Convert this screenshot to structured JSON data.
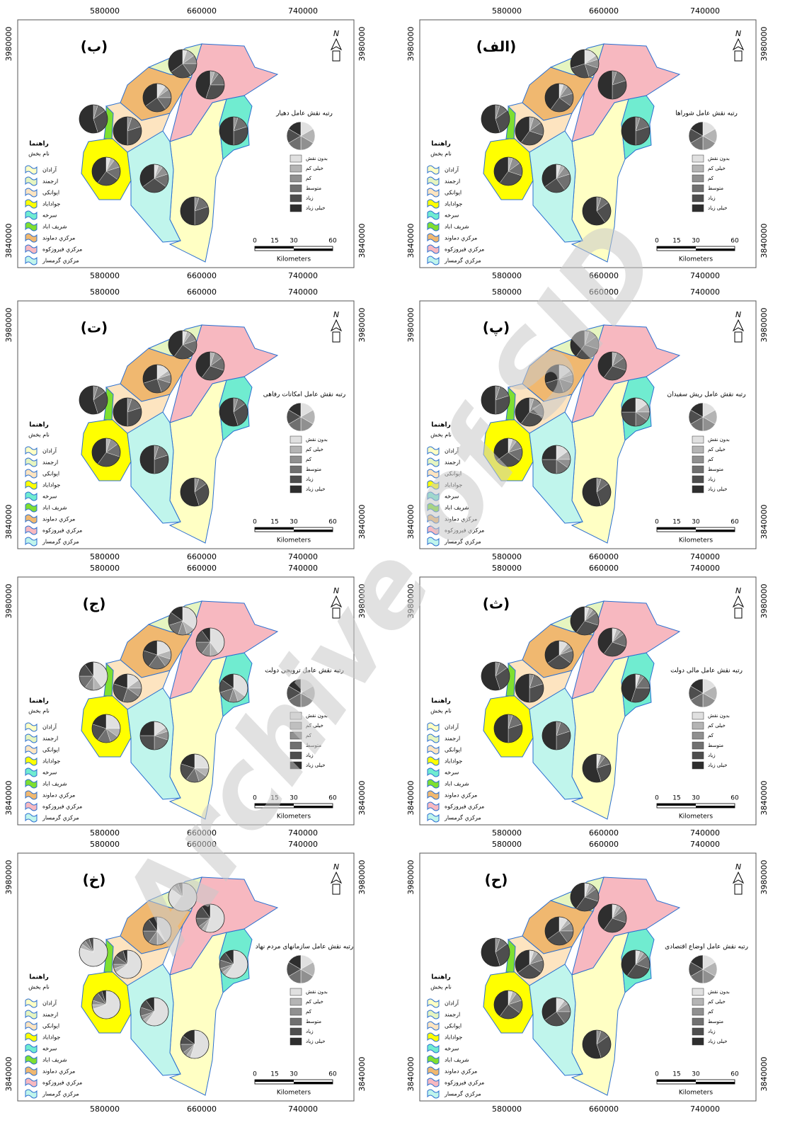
{
  "watermark": "Archive of SID",
  "x_ticks": [
    "580000",
    "660000",
    "740000"
  ],
  "y_ticks": [
    "3980000",
    "3840000"
  ],
  "north": "N",
  "legend": {
    "title": "راهنما",
    "subtitle": "نام بخش",
    "districts": [
      "آرادان",
      "ارجمند",
      "ايوانکی",
      "جواداباد",
      "سرخه",
      "شريف اباد",
      "مرکزي دماوند",
      "مرکزي فيروزکوه",
      "مرکزي گرمسار"
    ]
  },
  "pie_legend": [
    "بدون نقش",
    "خيلی کم",
    "کم",
    "متوسط",
    "زياد",
    "خيلی زياد"
  ],
  "scale": {
    "ticks": [
      "0",
      "15",
      "30",
      "60"
    ],
    "unit": "Kilometers"
  },
  "maps": [
    {
      "label": "(الف)",
      "title": "رتبه نقش عامل شوراها",
      "pies": [
        [
          0,
          0,
          5,
          10,
          25,
          60
        ],
        [
          15,
          5,
          10,
          15,
          25,
          30
        ],
        [
          0,
          5,
          10,
          15,
          30,
          40
        ],
        [
          0,
          5,
          10,
          15,
          30,
          40
        ],
        [
          0,
          0,
          5,
          15,
          30,
          50
        ],
        [
          0,
          0,
          5,
          10,
          30,
          55
        ],
        [
          5,
          5,
          10,
          15,
          25,
          40
        ],
        [
          0,
          0,
          5,
          15,
          30,
          50
        ],
        [
          5,
          5,
          10,
          20,
          25,
          35
        ]
      ]
    },
    {
      "label": "(ب)",
      "title": "رتبه نقش عامل دهيار",
      "pies": [
        [
          0,
          0,
          5,
          15,
          30,
          50
        ],
        [
          5,
          10,
          10,
          15,
          25,
          35
        ],
        [
          0,
          0,
          5,
          15,
          30,
          50
        ],
        [
          5,
          5,
          10,
          15,
          25,
          40
        ],
        [
          0,
          0,
          5,
          15,
          30,
          50
        ],
        [
          0,
          0,
          5,
          10,
          30,
          55
        ],
        [
          10,
          5,
          10,
          15,
          25,
          35
        ],
        [
          0,
          5,
          5,
          15,
          30,
          45
        ],
        [
          5,
          5,
          10,
          15,
          30,
          35
        ]
      ]
    },
    {
      "label": "(پ)",
      "title": "رتبه نقش عامل ريش سفيدان",
      "pies": [
        [
          0,
          0,
          5,
          10,
          30,
          55
        ],
        [
          0,
          5,
          10,
          15,
          30,
          40
        ],
        [
          0,
          5,
          10,
          15,
          30,
          40
        ],
        [
          5,
          5,
          10,
          15,
          30,
          35
        ],
        [
          15,
          10,
          10,
          15,
          25,
          25
        ],
        [
          0,
          0,
          5,
          15,
          30,
          50
        ],
        [
          15,
          5,
          10,
          15,
          25,
          30
        ],
        [
          0,
          5,
          10,
          15,
          30,
          40
        ],
        [
          15,
          10,
          10,
          15,
          25,
          25
        ]
      ]
    },
    {
      "label": "(ت)",
      "title": "رتبه نقش عامل امکانات رفاهی",
      "pies": [
        [
          0,
          0,
          5,
          10,
          30,
          55
        ],
        [
          5,
          5,
          10,
          15,
          25,
          40
        ],
        [
          0,
          0,
          5,
          15,
          30,
          50
        ],
        [
          0,
          5,
          10,
          15,
          30,
          40
        ],
        [
          0,
          0,
          5,
          10,
          30,
          55
        ],
        [
          0,
          0,
          5,
          10,
          30,
          55
        ],
        [
          15,
          5,
          10,
          15,
          25,
          30
        ],
        [
          0,
          5,
          10,
          15,
          30,
          40
        ],
        [
          0,
          0,
          5,
          15,
          30,
          50
        ]
      ]
    },
    {
      "label": "(ث)",
      "title": "رتبه نقش عامل مالی دولت",
      "pies": [
        [
          5,
          0,
          5,
          10,
          25,
          55
        ],
        [
          5,
          5,
          5,
          15,
          30,
          40
        ],
        [
          0,
          0,
          5,
          15,
          30,
          50
        ],
        [
          0,
          0,
          5,
          15,
          30,
          50
        ],
        [
          5,
          0,
          5,
          15,
          30,
          45
        ],
        [
          0,
          0,
          5,
          10,
          30,
          55
        ],
        [
          10,
          5,
          5,
          15,
          30,
          35
        ],
        [
          5,
          5,
          5,
          15,
          30,
          40
        ],
        [
          0,
          0,
          5,
          15,
          30,
          50
        ]
      ]
    },
    {
      "label": "(ج)",
      "title": "رتبه نقش عامل ترويجی دولت",
      "pies": [
        [
          25,
          10,
          10,
          15,
          20,
          20
        ],
        [
          35,
          10,
          10,
          15,
          15,
          15
        ],
        [
          15,
          10,
          10,
          20,
          25,
          20
        ],
        [
          25,
          10,
          10,
          15,
          20,
          20
        ],
        [
          35,
          10,
          10,
          15,
          15,
          15
        ],
        [
          40,
          10,
          10,
          15,
          15,
          10
        ],
        [
          20,
          10,
          10,
          20,
          20,
          20
        ],
        [
          40,
          10,
          10,
          15,
          15,
          10
        ],
        [
          15,
          5,
          10,
          20,
          25,
          25
        ]
      ]
    },
    {
      "label": "(ح)",
      "title": "رتبه نقش عامل اوضاع اقتصادی",
      "pies": [
        [
          0,
          0,
          5,
          10,
          30,
          55
        ],
        [
          5,
          5,
          5,
          15,
          30,
          40
        ],
        [
          5,
          5,
          10,
          15,
          30,
          35
        ],
        [
          5,
          5,
          10,
          15,
          25,
          40
        ],
        [
          5,
          5,
          5,
          15,
          30,
          40
        ],
        [
          0,
          0,
          5,
          10,
          30,
          55
        ],
        [
          10,
          5,
          10,
          15,
          25,
          35
        ],
        [
          5,
          5,
          5,
          15,
          30,
          40
        ],
        [
          10,
          5,
          10,
          15,
          25,
          35
        ]
      ]
    },
    {
      "label": "(خ)",
      "title": "رتبه نقش عامل سازمانهای مردم نهاد",
      "pies": [
        [
          55,
          5,
          5,
          10,
          10,
          15
        ],
        [
          85,
          5,
          5,
          5,
          0,
          0
        ],
        [
          65,
          5,
          5,
          10,
          10,
          5
        ],
        [
          70,
          5,
          5,
          10,
          5,
          5
        ],
        [
          60,
          5,
          5,
          10,
          10,
          10
        ],
        [
          80,
          5,
          5,
          5,
          5,
          0
        ],
        [
          40,
          10,
          10,
          15,
          15,
          10
        ],
        [
          55,
          5,
          5,
          10,
          15,
          10
        ],
        [
          60,
          5,
          5,
          10,
          10,
          10
        ]
      ]
    }
  ]
}
